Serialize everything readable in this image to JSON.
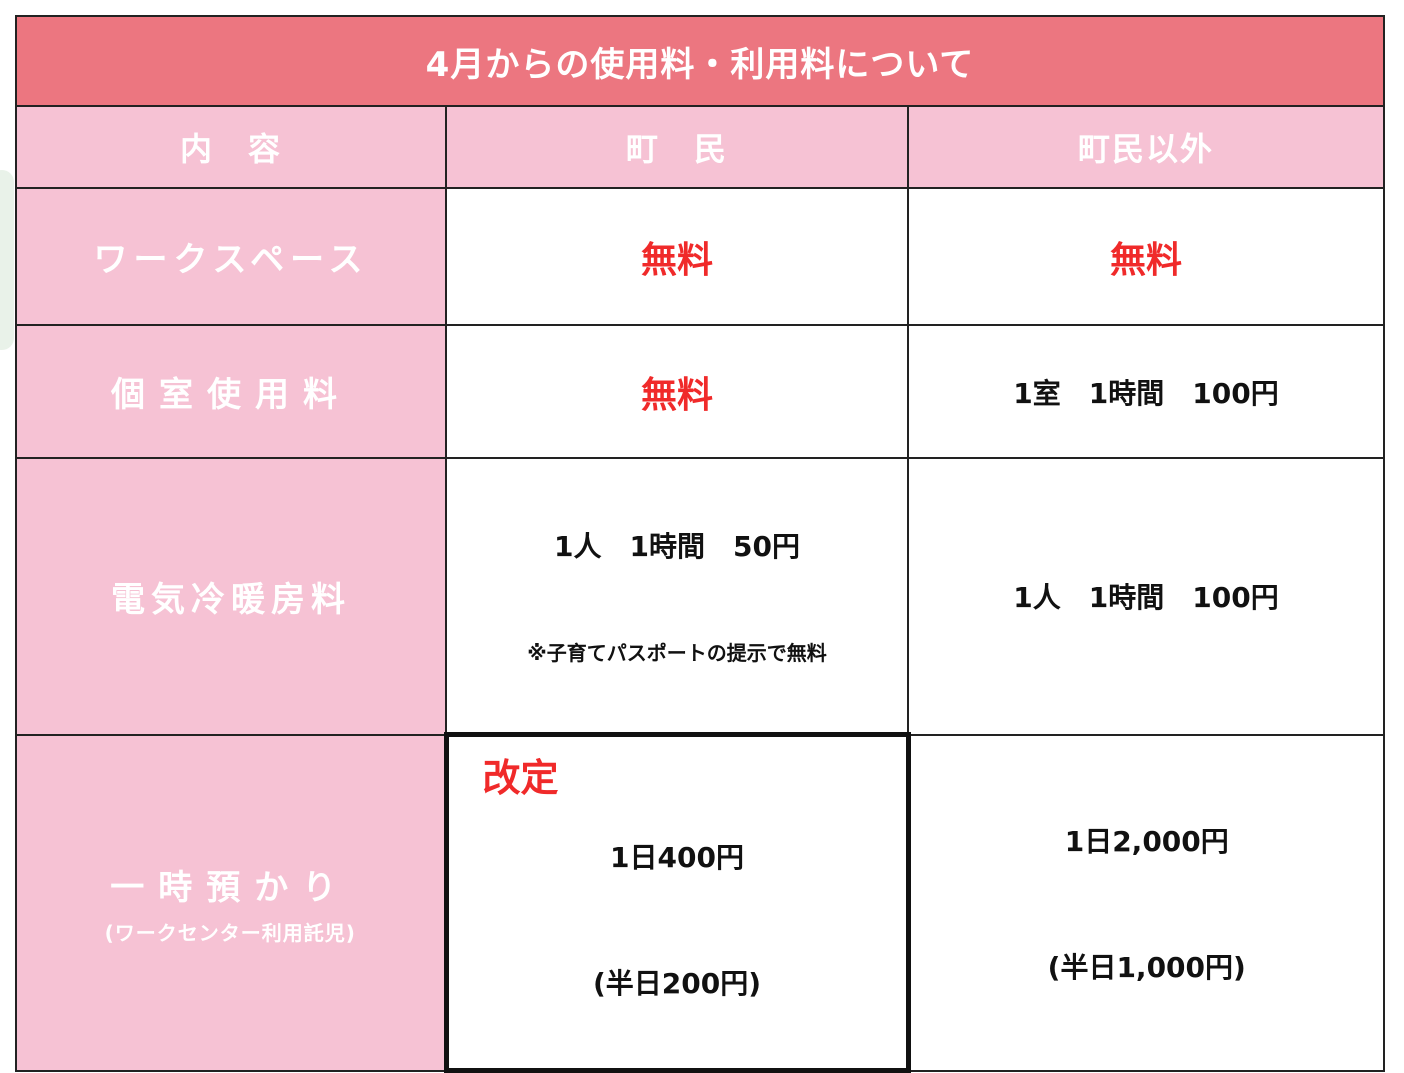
{
  "title": "4月からの使用料・利用料について",
  "headers": [
    "内　容",
    "町　民",
    "町民以外"
  ],
  "rows": [
    {
      "label": "ワークスペース",
      "resident": "無料",
      "non_resident": "無料"
    },
    {
      "label": "個室使用料",
      "resident": "無料",
      "non_resident": "1室　1時間　100円"
    },
    {
      "label": "電気冷暖房料",
      "resident": "1人　1時間　50円",
      "resident_note": "※子育てパスポートの提示で無料",
      "non_resident": "1人　1時間　100円"
    },
    {
      "label": "一時預かり",
      "sublabel": "(ワークセンター利用託児)",
      "badge": "改定",
      "resident": "1日400円",
      "resident_half": "(半日200円)",
      "non_resident": "1日2,000円",
      "non_resident_half": "(半日1,000円)"
    }
  ],
  "colors": {
    "title_bg": "#ec7680",
    "label_bg": "#f6c2d4",
    "free_text": "#f02a2a"
  }
}
